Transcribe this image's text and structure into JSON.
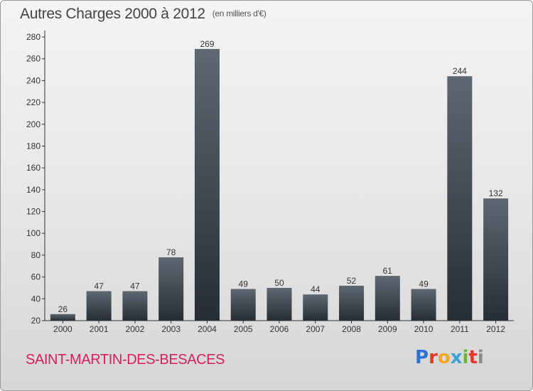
{
  "title": "Autres Charges 2000 à 2012",
  "unit_note": "(en milliers d'€)",
  "commune": "SAINT-MARTIN-DES-BESACES",
  "logo": {
    "text": "Proxiti",
    "letters": [
      "P",
      "r",
      "o",
      "x",
      "i",
      "t",
      "i"
    ],
    "colors": [
      "#2f6fd6",
      "#e2372d",
      "#f2a623",
      "#3aa3d9",
      "#6ab43a",
      "#e2372d",
      "#8a8a8a"
    ]
  },
  "colors": {
    "bar_top": "#5e6872",
    "bar_bottom": "#262d34",
    "place": "#d4215a"
  },
  "chart_data": {
    "type": "bar",
    "title": "Autres Charges 2000 à 2012",
    "ylabel": "",
    "xlabel": "",
    "ylim": [
      20,
      280
    ],
    "yticks": [
      20,
      40,
      60,
      80,
      100,
      120,
      140,
      160,
      180,
      200,
      220,
      240,
      260,
      280
    ],
    "grid": false,
    "categories": [
      "2000",
      "2001",
      "2002",
      "2003",
      "2004",
      "2005",
      "2006",
      "2007",
      "2008",
      "2009",
      "2010",
      "2011",
      "2012"
    ],
    "values": [
      26,
      47,
      47,
      78,
      269,
      49,
      50,
      44,
      52,
      61,
      49,
      244,
      132
    ]
  }
}
